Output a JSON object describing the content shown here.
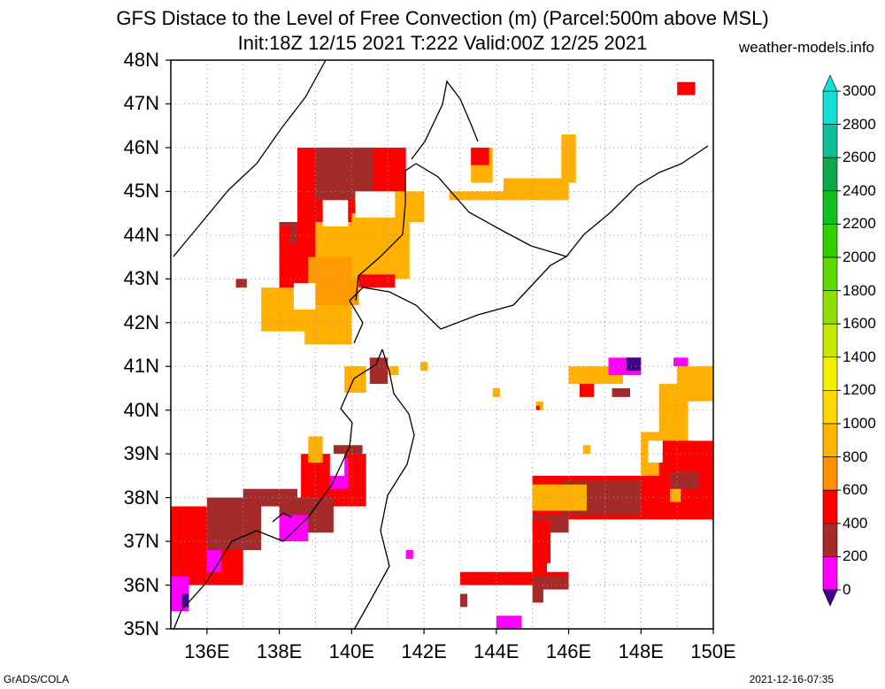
{
  "header": {
    "title_line1": "GFS Distace to the Level of Free Convection (m) (Parcel:500m above MSL)",
    "title_line2": "Init:18Z 12/15 2021 T:222 Valid:00Z 12/25 2021",
    "site": "weather-models.info"
  },
  "axes": {
    "lat_labels": [
      "48N",
      "47N",
      "46N",
      "45N",
      "44N",
      "43N",
      "42N",
      "41N",
      "40N",
      "39N",
      "38N",
      "37N",
      "36N",
      "35N"
    ],
    "lon_labels": [
      "136E",
      "138E",
      "140E",
      "142E",
      "144E",
      "146E",
      "148E",
      "150E"
    ]
  },
  "colorbar": {
    "labels": [
      "3000",
      "2800",
      "2600",
      "2400",
      "2200",
      "2000",
      "1800",
      "1600",
      "1400",
      "1200",
      "1000",
      "800",
      "600",
      "400",
      "200",
      "0"
    ],
    "colors": [
      "#12e0d6",
      "#0fbf9a",
      "#0aa84a",
      "#10c020",
      "#30d000",
      "#5fd800",
      "#8fe000",
      "#c8e800",
      "#f2f200",
      "#ffd800",
      "#ffb400",
      "#ff9000",
      "#ff0000",
      "#a52a2a",
      "#ff00ff",
      "#40008a"
    ]
  },
  "footer": {
    "left": "GrADS/COLA",
    "right": "2021-12-16-07:35"
  }
}
